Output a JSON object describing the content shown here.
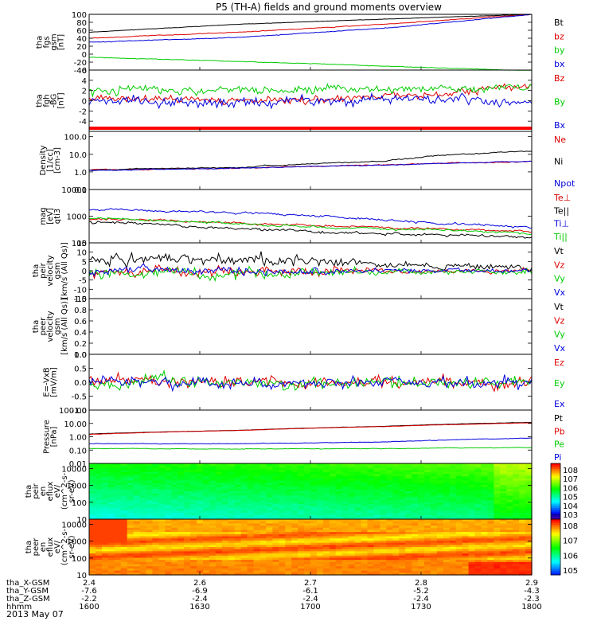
{
  "title": "P5 (TH-A) fields and ground moments overview",
  "date": "2013 May 07",
  "orbit": {
    "row_labels": [
      "tha_X-GSM",
      "tha_Y-GSM",
      "tha_Z-GSM",
      "hhmm"
    ],
    "columns": [
      [
        "2.4",
        "-7.6",
        "-2.2",
        "1600"
      ],
      [
        "2.6",
        "-6.9",
        "-2.4",
        "1630"
      ],
      [
        "2.7",
        "-6.1",
        "-2.4",
        "1700"
      ],
      [
        "2.8",
        "-5.2",
        "-2.4",
        "1730"
      ],
      [
        "2.9",
        "-4.3",
        "-2.3",
        "1800"
      ]
    ]
  },
  "chart_data": [
    {
      "type": "line",
      "ylabel": [
        "tha",
        "fgs",
        "gsm",
        "[nT]"
      ],
      "yticks": [
        "100",
        "80",
        "60",
        "40",
        "20",
        "0",
        "-20",
        "-40"
      ],
      "ylim": [
        -40,
        100
      ],
      "scale": "linear",
      "series": [
        {
          "name": "Bt",
          "color": "#000000",
          "trend": [
            55,
            75,
            88,
            100
          ]
        },
        {
          "name": "bz",
          "color": "#dd0000",
          "trend": [
            40,
            55,
            75,
            100
          ]
        },
        {
          "name": "by",
          "color": "#00cc00",
          "trend": [
            -8,
            -18,
            -30,
            -42
          ]
        },
        {
          "name": "bx",
          "color": "#0000dd",
          "trend": [
            30,
            42,
            65,
            100
          ]
        }
      ]
    },
    {
      "type": "line",
      "ylabel": [
        "tha",
        "fgh",
        "-BG",
        "[nT]"
      ],
      "yticks": [
        "6",
        "4",
        "2",
        "0",
        "-2",
        "-4"
      ],
      "ylim": [
        -6,
        6
      ],
      "scale": "linear",
      "series": [
        {
          "name": "Bz",
          "color": "#dd0000",
          "trend": [
            0.5,
            0.0,
            0.5,
            3.0
          ]
        },
        {
          "name": "By",
          "color": "#00cc00",
          "trend": [
            2.0,
            2.5,
            2.0,
            3.0
          ]
        },
        {
          "name": "Bx",
          "color": "#0000dd",
          "trend": [
            0.0,
            -0.5,
            0.5,
            -0.5
          ]
        }
      ]
    },
    {
      "type": "line",
      "ylabel": [
        "Density",
        "[1/cc]",
        "[cm-3]"
      ],
      "yticks": [
        "100.0",
        "10.0",
        "1.0",
        "0.1"
      ],
      "ylim": [
        0.1,
        200
      ],
      "scale": "log",
      "series": [
        {
          "name": "Ne",
          "color": "#dd0000",
          "trend": [
            1.3,
            1.6,
            2.5,
            4.0
          ]
        },
        {
          "name": "Ni",
          "color": "#000000",
          "trend": [
            1.3,
            1.8,
            4.0,
            15
          ]
        },
        {
          "name": "Npot",
          "color": "#0000dd",
          "trend": [
            1.2,
            1.6,
            2.5,
            4.0
          ]
        }
      ]
    },
    {
      "type": "line",
      "ylabel": [
        "mag",
        "[eV]",
        "qti3"
      ],
      "yticks": [
        "10000",
        "1000",
        "100"
      ],
      "ylim": [
        100,
        10000
      ],
      "scale": "log",
      "series": [
        {
          "name": "Te⊥",
          "color": "#dd0000",
          "trend": [
            800,
            550,
            380,
            260
          ]
        },
        {
          "name": "Te||",
          "color": "#000000",
          "trend": [
            600,
            350,
            220,
            160
          ]
        },
        {
          "name": "Ti⊥",
          "color": "#0000dd",
          "trend": [
            1800,
            1400,
            700,
            350
          ]
        },
        {
          "name": "Ti||",
          "color": "#00cc00",
          "trend": [
            850,
            500,
            330,
            230
          ]
        }
      ]
    },
    {
      "type": "line",
      "ylabel": [
        "tha",
        "peir",
        "velocity",
        "gsm",
        "[km/s (All Qs)]"
      ],
      "yticks": [
        "15",
        "10",
        "5",
        "0",
        "-5",
        "-10",
        "-15"
      ],
      "ylim": [
        -15,
        15
      ],
      "scale": "linear",
      "series": [
        {
          "name": "Vt",
          "color": "#000000",
          "trend": [
            6,
            6,
            3,
            2
          ]
        },
        {
          "name": "Vz",
          "color": "#dd0000",
          "trend": [
            0,
            0,
            0,
            0
          ]
        },
        {
          "name": "Vy",
          "color": "#00cc00",
          "trend": [
            -1,
            -2,
            -1,
            0
          ]
        },
        {
          "name": "Vx",
          "color": "#0000dd",
          "trend": [
            0,
            0,
            0,
            0
          ]
        }
      ]
    },
    {
      "type": "line",
      "ylabel": [
        "tha",
        "peer",
        "velocity",
        "gsm",
        "[km/s (All Qs)]"
      ],
      "yticks": [
        "1.0",
        "0.8",
        "0.6",
        "0.4",
        "0.2",
        "0.0"
      ],
      "ylim": [
        0,
        1
      ],
      "scale": "linear",
      "series": [
        {
          "name": "Vt",
          "color": "#000000",
          "trend": []
        },
        {
          "name": "Vz",
          "color": "#dd0000",
          "trend": []
        },
        {
          "name": "Vy",
          "color": "#00cc00",
          "trend": []
        },
        {
          "name": "Vx",
          "color": "#0000dd",
          "trend": []
        }
      ]
    },
    {
      "type": "line",
      "ylabel": [
        "E=-VxB",
        "[mV/m]"
      ],
      "yticks": [
        "1.0",
        "0.5",
        "0.0",
        "-0.5",
        "-1.0"
      ],
      "ylim": [
        -1,
        1
      ],
      "scale": "linear",
      "series": [
        {
          "name": "Ez",
          "color": "#dd0000",
          "trend": [
            0,
            0,
            0,
            0
          ]
        },
        {
          "name": "Ey",
          "color": "#00cc00",
          "trend": [
            0,
            0,
            0,
            0
          ]
        },
        {
          "name": "Ex",
          "color": "#0000dd",
          "trend": [
            0,
            0,
            0,
            0
          ]
        }
      ]
    },
    {
      "type": "line",
      "ylabel": [
        "Pressure",
        "[nPa]"
      ],
      "yticks": [
        "100.00",
        "10.00",
        "1.00",
        "0.10",
        "0.01"
      ],
      "ylim": [
        0.01,
        100
      ],
      "scale": "log",
      "series": [
        {
          "name": "Pt",
          "color": "#000000",
          "trend": [
            1.6,
            3.0,
            6.0,
            12
          ]
        },
        {
          "name": "Pb",
          "color": "#dd0000",
          "trend": [
            1.5,
            2.9,
            5.8,
            11
          ]
        },
        {
          "name": "Pe",
          "color": "#00cc00",
          "trend": [
            0.13,
            0.12,
            0.13,
            0.16
          ]
        },
        {
          "name": "Pi",
          "color": "#0000dd",
          "trend": [
            0.3,
            0.3,
            0.4,
            0.8
          ]
        }
      ]
    },
    {
      "type": "heatmap",
      "ylabel": [
        "tha",
        "peir",
        "en",
        "eflux",
        "eV/",
        "(cm^2-s-",
        "sr-eV)"
      ],
      "yticks": [
        "10000",
        "1000",
        "100",
        "10"
      ],
      "ylim": [
        10,
        20000
      ],
      "scale": "log",
      "colorbar_ticks": [
        "10^8",
        "10^7",
        "10^6",
        "10^5",
        "10^4",
        "10^3"
      ]
    },
    {
      "type": "heatmap",
      "ylabel": [
        "tha",
        "peer",
        "en",
        "eflux",
        "eV/",
        "(cm^2-s-",
        "sr-eV)"
      ],
      "yticks": [
        "10000",
        "1000",
        "100",
        "10"
      ],
      "ylim": [
        10,
        20000
      ],
      "scale": "log",
      "colorbar_ticks": [
        "10^8",
        "10^7",
        "10^6",
        "10^5"
      ]
    }
  ]
}
